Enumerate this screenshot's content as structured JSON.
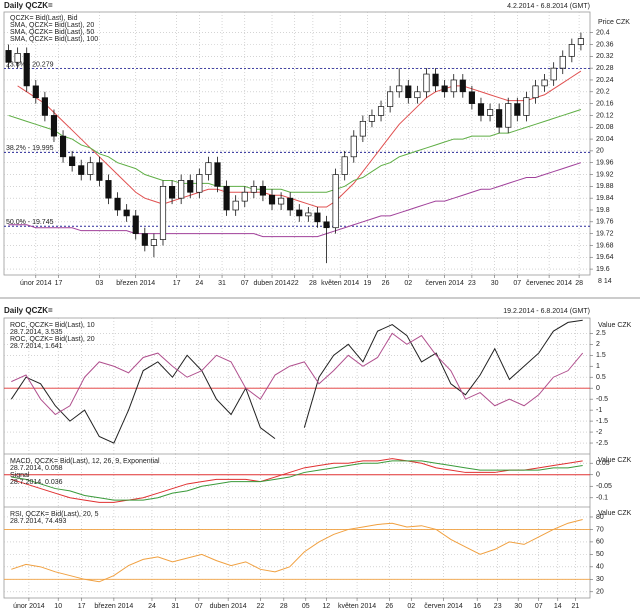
{
  "chart_data": [
    {
      "type": "candlestick",
      "title": "Daily QCZK=",
      "date_range": "4.2.2014 - 6.8.2014 (GMT)",
      "y_label": "Price CZK",
      "legend_header": "QCZK= Bid(Last), Bid",
      "date_marker": "8 14",
      "open": [
        20.34,
        20.3,
        20.33,
        20.22,
        20.18,
        20.12,
        20.05,
        19.98,
        19.95,
        19.92,
        19.96,
        19.9,
        19.84,
        19.8,
        19.78,
        19.72,
        19.68,
        19.7,
        19.88,
        19.84,
        19.9,
        19.86,
        19.92,
        19.96,
        19.88,
        19.8,
        19.83,
        19.86,
        19.88,
        19.85,
        19.82,
        19.84,
        19.8,
        19.78,
        19.79,
        19.76,
        19.74,
        19.92,
        19.98,
        20.05,
        20.1,
        20.12,
        20.15,
        20.2,
        20.22,
        20.18,
        20.2,
        20.26,
        20.22,
        20.2,
        20.24,
        20.2,
        20.16,
        20.12,
        20.14,
        20.08,
        20.16,
        20.12,
        20.18,
        20.22,
        20.24,
        20.28,
        20.32,
        20.36
      ],
      "high": [
        20.36,
        20.35,
        20.35,
        20.24,
        20.2,
        20.14,
        20.07,
        20.0,
        19.97,
        19.98,
        19.98,
        19.92,
        19.86,
        19.82,
        19.8,
        19.74,
        19.72,
        19.9,
        19.9,
        19.92,
        19.92,
        19.94,
        19.98,
        19.98,
        19.9,
        19.85,
        19.88,
        19.9,
        19.9,
        19.87,
        19.86,
        19.86,
        19.82,
        19.81,
        19.81,
        19.78,
        19.94,
        20.0,
        20.07,
        20.12,
        20.14,
        20.17,
        20.22,
        20.28,
        20.24,
        20.22,
        20.28,
        20.28,
        20.24,
        20.26,
        20.26,
        20.22,
        20.18,
        20.16,
        20.16,
        20.18,
        20.18,
        20.2,
        20.24,
        20.26,
        20.3,
        20.34,
        20.38,
        20.4
      ],
      "low": [
        20.28,
        20.28,
        20.2,
        20.16,
        20.1,
        20.03,
        19.96,
        19.93,
        19.9,
        19.9,
        19.88,
        19.82,
        19.78,
        19.76,
        19.7,
        19.66,
        19.64,
        19.68,
        19.82,
        19.82,
        19.84,
        19.84,
        19.9,
        19.86,
        19.78,
        19.78,
        19.81,
        19.84,
        19.83,
        19.8,
        19.8,
        19.78,
        19.76,
        19.76,
        19.74,
        19.62,
        19.72,
        19.9,
        19.96,
        20.03,
        20.08,
        20.1,
        20.13,
        20.18,
        20.16,
        20.16,
        20.18,
        20.2,
        20.18,
        20.18,
        20.18,
        20.14,
        20.1,
        20.1,
        20.06,
        20.06,
        20.1,
        20.1,
        20.16,
        20.2,
        20.22,
        20.26,
        20.3,
        20.34
      ],
      "close": [
        20.3,
        20.33,
        20.22,
        20.18,
        20.12,
        20.05,
        19.98,
        19.95,
        19.92,
        19.96,
        19.9,
        19.84,
        19.8,
        19.78,
        19.72,
        19.68,
        19.7,
        19.88,
        19.84,
        19.9,
        19.86,
        19.92,
        19.96,
        19.88,
        19.8,
        19.83,
        19.86,
        19.88,
        19.85,
        19.82,
        19.84,
        19.8,
        19.78,
        19.79,
        19.76,
        19.74,
        19.92,
        19.98,
        20.05,
        20.1,
        20.12,
        20.15,
        20.2,
        20.22,
        20.18,
        20.2,
        20.26,
        20.22,
        20.2,
        20.24,
        20.2,
        20.16,
        20.12,
        20.14,
        20.08,
        20.16,
        20.12,
        20.18,
        20.22,
        20.24,
        20.28,
        20.32,
        20.36,
        20.38
      ],
      "series": [
        {
          "name": "SMA, QCZK= Bid(Last), 20",
          "color": "#e05050",
          "values": [
            null,
            20.22,
            20.2,
            20.18,
            20.16,
            20.13,
            20.1,
            20.07,
            20.04,
            20.01,
            19.98,
            19.95,
            19.92,
            19.89,
            19.86,
            19.84,
            19.83,
            19.82,
            19.83,
            19.84,
            19.85,
            19.86,
            19.87,
            19.87,
            19.86,
            19.86,
            19.86,
            19.86,
            19.86,
            19.85,
            19.85,
            19.84,
            19.83,
            19.82,
            19.81,
            19.81,
            19.83,
            19.86,
            19.89,
            19.93,
            19.97,
            20.01,
            20.05,
            20.09,
            20.12,
            20.15,
            20.18,
            20.2,
            20.21,
            20.22,
            20.22,
            20.21,
            20.2,
            20.19,
            20.18,
            20.17,
            20.17,
            20.17,
            20.18,
            20.19,
            20.21,
            20.23,
            20.25,
            20.27
          ]
        },
        {
          "name": "SMA, QCZK= Bid(Last), 50",
          "color": "#5fae45",
          "values": [
            20.12,
            20.11,
            20.1,
            20.09,
            20.08,
            20.07,
            20.05,
            20.04,
            20.02,
            20.01,
            19.99,
            19.98,
            19.96,
            19.95,
            19.94,
            19.92,
            19.91,
            19.9,
            19.9,
            19.89,
            19.89,
            19.89,
            19.89,
            19.88,
            19.88,
            19.88,
            19.88,
            19.87,
            19.87,
            19.87,
            19.87,
            19.86,
            19.86,
            19.86,
            19.86,
            19.86,
            19.87,
            19.88,
            19.9,
            19.91,
            19.93,
            19.95,
            19.96,
            19.98,
            19.99,
            20.0,
            20.01,
            20.02,
            20.03,
            20.04,
            20.04,
            20.05,
            20.05,
            20.05,
            20.06,
            20.06,
            20.07,
            20.08,
            20.09,
            20.1,
            20.11,
            20.12,
            20.13,
            20.14
          ]
        },
        {
          "name": "SMA, QCZK= Bid(Last), 100",
          "color": "#a0409a",
          "values": [
            19.75,
            19.75,
            19.75,
            19.74,
            19.74,
            19.74,
            19.74,
            19.74,
            19.73,
            19.73,
            19.73,
            19.73,
            19.73,
            19.73,
            19.72,
            19.72,
            19.72,
            19.72,
            19.72,
            19.72,
            19.72,
            19.72,
            19.72,
            19.72,
            19.72,
            19.72,
            19.72,
            19.72,
            19.71,
            19.71,
            19.71,
            19.71,
            19.71,
            19.71,
            19.71,
            19.72,
            19.73,
            19.74,
            19.75,
            19.76,
            19.77,
            19.78,
            19.78,
            19.79,
            19.8,
            19.81,
            19.82,
            19.83,
            19.83,
            19.84,
            19.85,
            19.86,
            19.87,
            19.87,
            19.88,
            19.89,
            19.9,
            19.91,
            19.91,
            19.92,
            19.93,
            19.94,
            19.95,
            19.96
          ]
        }
      ],
      "fib_levels": [
        {
          "label": "23.6% - 20.279",
          "value": 20.279
        },
        {
          "label": "38.2% - 19.995",
          "value": 19.995
        },
        {
          "label": "50.0% - 19.745",
          "value": 19.745
        }
      ],
      "fib_color": "#2b2b9a",
      "xlim": [
        -0.5,
        64
      ],
      "ylim": [
        19.58,
        20.47
      ],
      "yticks": [
        19.6,
        19.64,
        19.68,
        19.72,
        19.76,
        19.8,
        19.84,
        19.88,
        19.92,
        19.96,
        20,
        20.04,
        20.08,
        20.12,
        20.16,
        20.2,
        20.24,
        20.28,
        20.32,
        20.36,
        20.4
      ],
      "xticks": [
        {
          "value": 3,
          "label": "únor 2014"
        },
        {
          "value": 5.5,
          "label": "17"
        },
        {
          "value": 10,
          "label": "03"
        },
        {
          "value": 14,
          "label": "březen 2014"
        },
        {
          "value": 18.5,
          "label": "17"
        },
        {
          "value": 21,
          "label": "24"
        },
        {
          "value": 23.5,
          "label": "31"
        },
        {
          "value": 26,
          "label": "07"
        },
        {
          "value": 29,
          "label": "duben 2014"
        },
        {
          "value": 31.5,
          "label": "22"
        },
        {
          "value": 33.5,
          "label": "28"
        },
        {
          "value": 36.5,
          "label": "květen 2014"
        },
        {
          "value": 39.5,
          "label": "19"
        },
        {
          "value": 41.5,
          "label": "26"
        },
        {
          "value": 44,
          "label": "02"
        },
        {
          "value": 48,
          "label": "červen 2014"
        },
        {
          "value": 51,
          "label": "23"
        },
        {
          "value": 53.5,
          "label": "30"
        },
        {
          "value": 56,
          "label": "07"
        },
        {
          "value": 59.5,
          "label": "červenec 2014"
        },
        {
          "value": 62.8,
          "label": "28"
        }
      ],
      "grid": true
    },
    {
      "type": "line",
      "title": "Daily QCZK=",
      "date_range": "19.2.2014 - 6.8.2014 (GMT)",
      "y_label": "Value CZK",
      "series": [
        {
          "name": "ROC, QCZK= Bid(Last), 10",
          "value_note": "28.7.2014, 3.535",
          "color": "#222222",
          "values": [
            -0.5,
            0.5,
            0.2,
            -0.8,
            -1.5,
            -1,
            -2.2,
            -2.5,
            -1,
            0.8,
            1.2,
            0.5,
            1.5,
            0.8,
            -0.5,
            -1.2,
            0,
            -1.8,
            -2.3,
            null,
            -1.8,
            0.5,
            1.5,
            2.0,
            1.2,
            2.6,
            2.9,
            2.4,
            1.2,
            1.6,
            0.2,
            -0.3,
            0.6,
            1.8,
            0.4,
            1.0,
            1.6,
            2.6,
            3.0,
            3.1
          ]
        },
        {
          "name": "ROC, QCZK= Bid(Last), 20",
          "value_note": "28.7.2014, 1.641",
          "color": "#b0508e",
          "values": [
            0.3,
            0.6,
            -0.5,
            -1.2,
            -0.8,
            0.5,
            1.2,
            1.0,
            0.7,
            1.4,
            1.6,
            1.0,
            0.5,
            0.8,
            1.5,
            1.2,
            0.0,
            -0.5,
            0.6,
            1.0,
            1.2,
            0.2,
            0.8,
            1.5,
            1.0,
            1.4,
            2.5,
            2.0,
            2.4,
            1.5,
            0.8,
            -0.5,
            -0.2,
            -0.8,
            -0.5,
            -0.8,
            -0.3,
            0.5,
            0.8,
            1.6
          ]
        }
      ],
      "reference_lines": [
        0
      ],
      "reference_color": "#e03030",
      "xlim": [
        -0.5,
        39.5
      ],
      "ylim": [
        -3,
        3.2
      ],
      "yticks": [
        -2.5,
        -2,
        -1.5,
        -1,
        -0.5,
        0,
        0.5,
        1,
        1.5,
        2,
        2.5
      ],
      "grid": true
    },
    {
      "type": "line",
      "y_label": "Value CZK",
      "series": [
        {
          "name": "MACD, QCZK= Bid(Last), 12, 26, 9, Exponential",
          "value_note": "28.7.2014, 0.058",
          "color": "#e03030",
          "values": [
            -0.02,
            -0.04,
            -0.06,
            -0.08,
            -0.1,
            -0.11,
            -0.12,
            -0.12,
            -0.11,
            -0.1,
            -0.08,
            -0.06,
            -0.04,
            -0.03,
            -0.02,
            -0.02,
            -0.02,
            -0.03,
            -0.01,
            0.01,
            0.03,
            0.04,
            0.05,
            0.05,
            0.06,
            0.06,
            0.07,
            0.06,
            0.05,
            0.03,
            0.02,
            0.01,
            0.01,
            0.01,
            0.02,
            0.02,
            0.03,
            0.04,
            0.05,
            0.06
          ]
        },
        {
          "name": "Signal",
          "value_note": "28.7.2014, 0.036",
          "color": "#3a9a3a",
          "values": [
            -0.01,
            -0.02,
            -0.04,
            -0.06,
            -0.07,
            -0.09,
            -0.1,
            -0.11,
            -0.11,
            -0.11,
            -0.1,
            -0.08,
            -0.07,
            -0.05,
            -0.04,
            -0.03,
            -0.03,
            -0.03,
            -0.02,
            -0.01,
            0.01,
            0.02,
            0.03,
            0.04,
            0.05,
            0.05,
            0.06,
            0.06,
            0.06,
            0.05,
            0.04,
            0.03,
            0.02,
            0.02,
            0.02,
            0.02,
            0.02,
            0.03,
            0.03,
            0.04
          ]
        }
      ],
      "reference_lines": [
        0
      ],
      "reference_color": "#e03030",
      "xlim": [
        -0.5,
        39.5
      ],
      "ylim": [
        -0.14,
        0.09
      ],
      "yticks": [
        -0.1,
        -0.05,
        0,
        0.05
      ],
      "grid": true
    },
    {
      "type": "line",
      "y_label": "Value CZK",
      "series": [
        {
          "name": "RSI, QCZK= Bid(Last), 20, 5",
          "value_note": "28.7.2014, 74.493",
          "color": "#f0a040",
          "values": [
            38,
            42,
            40,
            36,
            33,
            30,
            28,
            33,
            41,
            46,
            48,
            44,
            47,
            50,
            45,
            41,
            44,
            38,
            36,
            40,
            52,
            60,
            66,
            70,
            72,
            74,
            75,
            72,
            73,
            70,
            62,
            56,
            50,
            54,
            60,
            58,
            64,
            70,
            75,
            78
          ]
        }
      ],
      "reference_lines": [
        70,
        30
      ],
      "reference_color": "#f0a040",
      "xlim": [
        -0.5,
        39.5
      ],
      "ylim": [
        15,
        88
      ],
      "yticks": [
        20,
        30,
        40,
        50,
        60,
        70,
        80
      ],
      "xticks": [
        {
          "value": 1.2,
          "label": "únor 2014"
        },
        {
          "value": 3.2,
          "label": "10"
        },
        {
          "value": 4.8,
          "label": "17"
        },
        {
          "value": 7,
          "label": "březen 2014"
        },
        {
          "value": 9.6,
          "label": "24"
        },
        {
          "value": 11.2,
          "label": "31"
        },
        {
          "value": 12.8,
          "label": "07"
        },
        {
          "value": 14.8,
          "label": "duben 2014"
        },
        {
          "value": 17,
          "label": "22"
        },
        {
          "value": 18.6,
          "label": "28"
        },
        {
          "value": 20.1,
          "label": "05"
        },
        {
          "value": 21.5,
          "label": "12"
        },
        {
          "value": 23.6,
          "label": "květen 2014"
        },
        {
          "value": 25.8,
          "label": "26"
        },
        {
          "value": 27.3,
          "label": "02"
        },
        {
          "value": 29.5,
          "label": "červen 2014"
        },
        {
          "value": 31.8,
          "label": "16"
        },
        {
          "value": 33.2,
          "label": "23"
        },
        {
          "value": 34.6,
          "label": "30"
        },
        {
          "value": 36,
          "label": "07"
        },
        {
          "value": 37.3,
          "label": "14"
        },
        {
          "value": 38.5,
          "label": "21"
        }
      ],
      "grid": true
    }
  ]
}
